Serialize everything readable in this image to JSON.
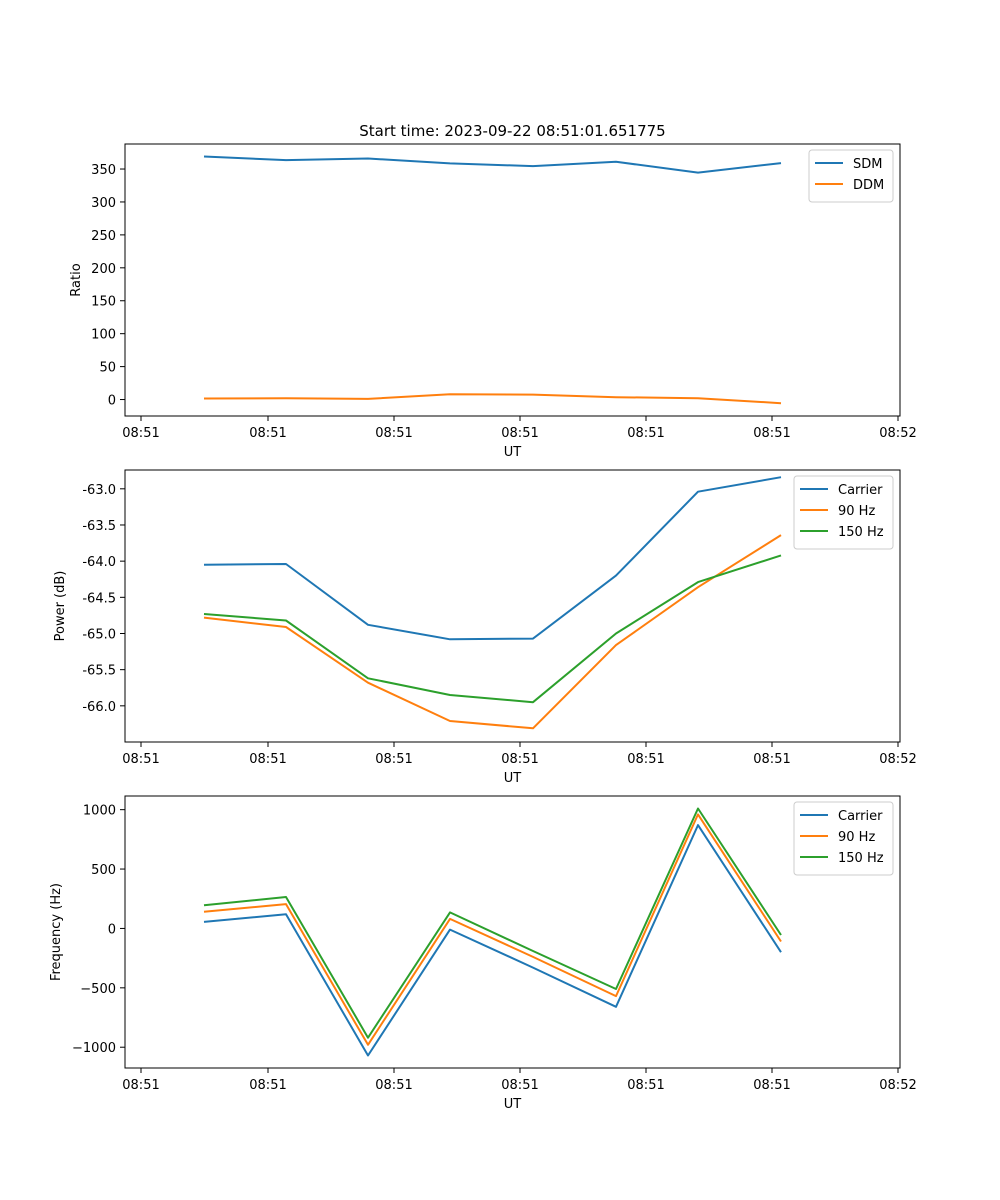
{
  "chart_data": [
    {
      "type": "line",
      "title": "Start time: 2023-09-22 08:51:01.651775",
      "xlabel": "UT",
      "ylabel": "Ratio",
      "x_ticks": [
        "08:51",
        "08:51",
        "08:51",
        "08:51",
        "08:51",
        "08:51",
        "08:52"
      ],
      "y_ticks": [
        0,
        50,
        100,
        150,
        200,
        250,
        300,
        350
      ],
      "ylim": [
        -25,
        388
      ],
      "legend": "top-right",
      "series": [
        {
          "name": "SDM",
          "color": "#1f77b4",
          "values": [
            369.0,
            363.5,
            366.0,
            358.5,
            354.5,
            361.0,
            344.5,
            359.0
          ]
        },
        {
          "name": "DDM",
          "color": "#ff7f0e",
          "values": [
            1.5,
            2.0,
            1.0,
            8.0,
            7.5,
            3.5,
            2.0,
            -5.5
          ]
        }
      ]
    },
    {
      "type": "line",
      "title": "",
      "xlabel": "UT",
      "ylabel": "Power (dB)",
      "x_ticks": [
        "08:51",
        "08:51",
        "08:51",
        "08:51",
        "08:51",
        "08:51",
        "08:52"
      ],
      "y_ticks": [
        "-63.0",
        "-63.5",
        "-64.0",
        "-64.5",
        "-65.0",
        "-65.5",
        "-66.0"
      ],
      "ylim": [
        -66.5,
        -62.74
      ],
      "legend": "top-right",
      "series": [
        {
          "name": "Carrier",
          "color": "#1f77b4",
          "values": [
            -64.05,
            -64.04,
            -64.88,
            -65.08,
            -65.07,
            -64.2,
            -63.04,
            -62.84
          ]
        },
        {
          "name": "90 Hz",
          "color": "#ff7f0e",
          "values": [
            -64.78,
            -64.91,
            -65.68,
            -66.21,
            -66.31,
            -65.16,
            -64.36,
            -63.64
          ]
        },
        {
          "name": "150 Hz",
          "color": "#2ca02c",
          "values": [
            -64.73,
            -64.82,
            -65.62,
            -65.85,
            -65.95,
            -65.0,
            -64.29,
            -63.92
          ]
        }
      ]
    },
    {
      "type": "line",
      "title": "",
      "xlabel": "UT",
      "ylabel": "Frequency (Hz)",
      "x_ticks": [
        "08:51",
        "08:51",
        "08:51",
        "08:51",
        "08:51",
        "08:51",
        "08:52"
      ],
      "y_ticks": [
        "1000",
        "500",
        "0",
        "−500",
        "−1000"
      ],
      "ylim": [
        -1175,
        1115
      ],
      "legend": "top-right",
      "series": [
        {
          "name": "Carrier",
          "color": "#1f77b4",
          "values": [
            55,
            120,
            -1070,
            -10,
            -330,
            -660,
            870,
            -200
          ]
        },
        {
          "name": "90 Hz",
          "color": "#ff7f0e",
          "values": [
            140,
            205,
            -980,
            80,
            -240,
            -570,
            960,
            -110
          ]
        },
        {
          "name": "150 Hz",
          "color": "#2ca02c",
          "values": [
            195,
            265,
            -920,
            135,
            -190,
            -510,
            1010,
            -55
          ]
        }
      ]
    }
  ]
}
